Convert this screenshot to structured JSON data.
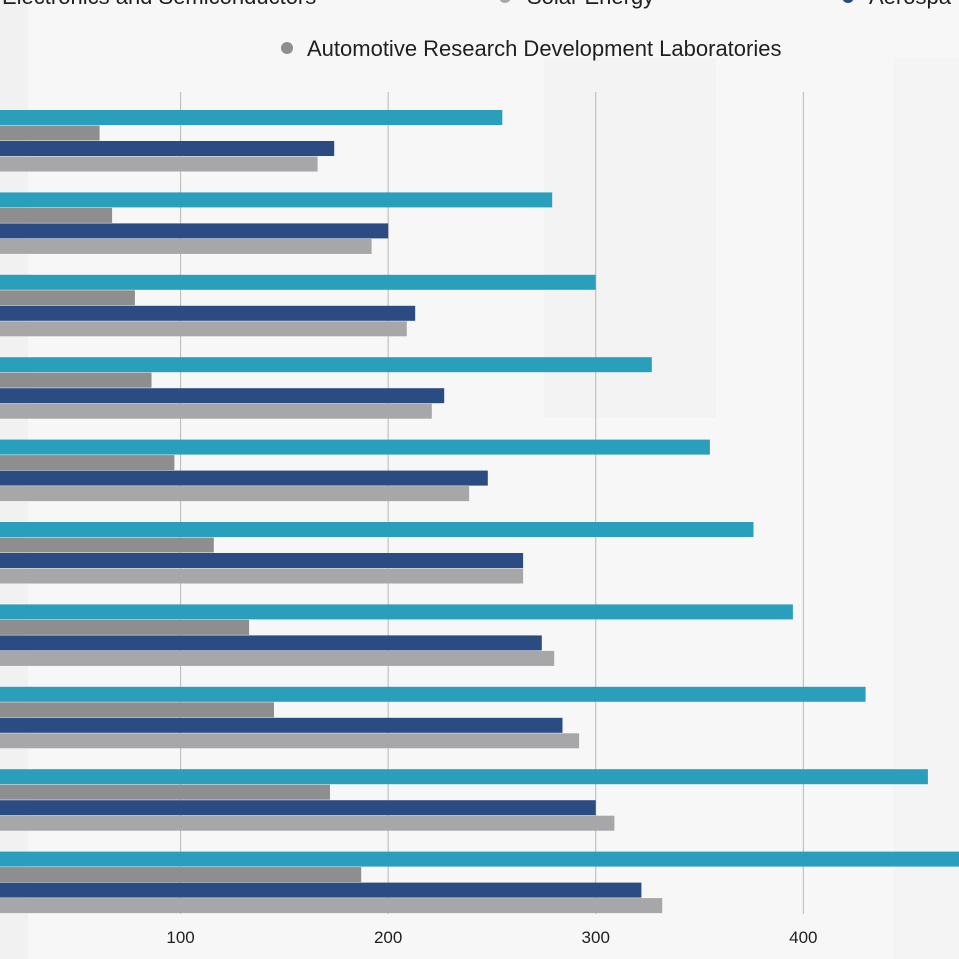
{
  "chart_data": {
    "type": "bar",
    "orientation": "horizontal",
    "title": "",
    "xlabel": "",
    "ylabel": "",
    "xlim": [
      13,
      475
    ],
    "x_ticks": [
      100,
      200,
      300,
      400
    ],
    "grid": "vertical",
    "legend_position": "top",
    "categories": [
      "",
      "",
      "",
      "",
      "",
      "",
      "",
      "",
      "",
      ""
    ],
    "series": [
      {
        "name": "Electronics and Semiconductors",
        "color": "#2a9fbb",
        "values": [
          255,
          279,
          300,
          327,
          355,
          376,
          395,
          430,
          460,
          475
        ]
      },
      {
        "name": "Solar Energy",
        "color": "#8e8e8e",
        "values": [
          61,
          67,
          78,
          86,
          97,
          116,
          133,
          145,
          172,
          187
        ]
      },
      {
        "name": "Aerospa",
        "color": "#2b4c82",
        "values": [
          174,
          200,
          213,
          227,
          248,
          265,
          274,
          284,
          300,
          322
        ]
      },
      {
        "name": "Automotive Research Development Laboratories",
        "color": "#a7a7aa",
        "values": [
          166,
          192,
          209,
          221,
          239,
          265,
          280,
          292,
          309,
          332
        ]
      }
    ]
  }
}
